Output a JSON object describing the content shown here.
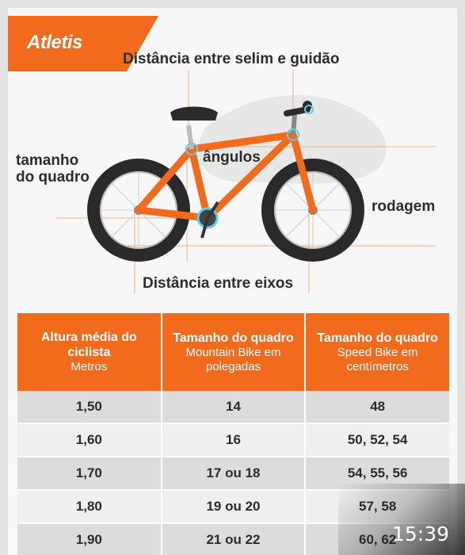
{
  "brand": "Atletis",
  "labels": {
    "saddle_handlebar": "Distância entre selim e guidão",
    "frame_size": "tamanho do quadro",
    "angles": "ângulos",
    "wheel": "rodagem",
    "axle_distance": "Distância entre eixos"
  },
  "table": {
    "headers": [
      {
        "title": "Altura média do ciclista",
        "sub": "Metros"
      },
      {
        "title": "Tamanho do quadro",
        "sub": "Mountain Bike em polegadas"
      },
      {
        "title": "Tamanho do quadro",
        "sub": "Speed Bike em centímetros"
      }
    ],
    "rows": [
      [
        "1,50",
        "14",
        "48"
      ],
      [
        "1,60",
        "16",
        "50, 52, 54"
      ],
      [
        "1,70",
        "17 ou 18",
        "54, 55, 56"
      ],
      [
        "1,80",
        "19 ou 20",
        "57, 58"
      ],
      [
        "1,90",
        "21 ou 22",
        "60, 62"
      ]
    ]
  },
  "status": {
    "time": "15:39"
  },
  "colors": {
    "accent": "#f26a1b",
    "text": "#2d2d2d"
  }
}
